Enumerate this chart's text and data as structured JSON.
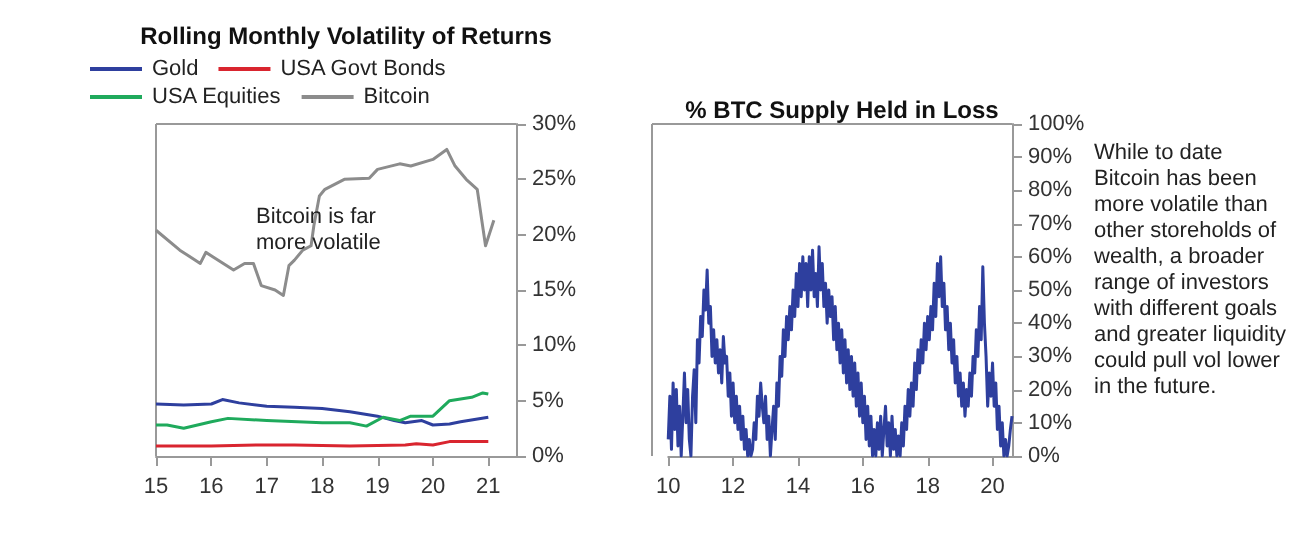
{
  "chart_data": [
    {
      "type": "line",
      "title": "Rolling Monthly Volatility of Returns",
      "legend": "top",
      "marker": "none",
      "grid": false,
      "xlim": [
        15,
        21.5
      ],
      "xticks": [
        15,
        16,
        17,
        18,
        19,
        20,
        21
      ],
      "ylim": [
        0,
        30
      ],
      "yticks": [
        {
          "value": 0,
          "label": "0%"
        },
        {
          "value": 5,
          "label": "5%"
        },
        {
          "value": 10,
          "label": "10%"
        },
        {
          "value": 15,
          "label": "15%"
        },
        {
          "value": 20,
          "label": "20%"
        },
        {
          "value": 25,
          "label": "25%"
        },
        {
          "value": 30,
          "label": "30%"
        }
      ],
      "annotations": [
        "Bitcoin is far more volatile"
      ],
      "series": [
        {
          "name": "Gold",
          "color": "#2e3f9e",
          "x": [
            15,
            15.5,
            16,
            16.2,
            16.5,
            17,
            17.5,
            18,
            18.5,
            19,
            19.3,
            19.5,
            19.8,
            20,
            20.3,
            20.5,
            21
          ],
          "values": [
            4.7,
            4.6,
            4.7,
            5.1,
            4.8,
            4.5,
            4.4,
            4.3,
            4.0,
            3.6,
            3.2,
            3.0,
            3.2,
            2.8,
            2.9,
            3.1,
            3.5
          ]
        },
        {
          "name": "USA Govt Bonds",
          "color": "#d9252f",
          "x": [
            15,
            16,
            16.9,
            17.5,
            18.5,
            19.5,
            19.7,
            20,
            20.3,
            21
          ],
          "values": [
            0.9,
            0.9,
            1.0,
            1.0,
            0.9,
            1.0,
            1.1,
            1.0,
            1.3,
            1.3
          ]
        },
        {
          "name": "USA Equities",
          "color": "#1faa5c",
          "x": [
            15,
            15.2,
            15.5,
            16,
            16.3,
            17,
            18,
            18.5,
            18.8,
            19.1,
            19.4,
            19.6,
            20,
            20.3,
            20.7,
            20.9,
            21
          ],
          "values": [
            2.8,
            2.8,
            2.5,
            3.1,
            3.4,
            3.2,
            3.0,
            3.0,
            2.7,
            3.5,
            3.2,
            3.6,
            3.6,
            5.0,
            5.3,
            5.7,
            5.6
          ]
        },
        {
          "name": "Bitcoin",
          "color": "#8c8c8c",
          "x": [
            15,
            15.43,
            15.8,
            15.9,
            16.4,
            16.6,
            16.76,
            16.9,
            17.15,
            17.3,
            17.4,
            17.5,
            17.65,
            17.8,
            17.85,
            17.95,
            18.05,
            18.4,
            18.85,
            19,
            19.4,
            19.6,
            20,
            20.25,
            20.4,
            20.6,
            20.8,
            20.95,
            21.1
          ],
          "values": [
            20.4,
            18.6,
            17.4,
            18.4,
            16.8,
            17.4,
            17.4,
            15.4,
            15,
            14.5,
            17.2,
            17.7,
            18.6,
            19,
            20.8,
            23.5,
            24.1,
            25,
            25.1,
            25.9,
            26.4,
            26.2,
            26.8,
            27.7,
            26.2,
            25,
            24.1,
            19,
            21.3
          ]
        }
      ]
    },
    {
      "type": "line",
      "title": "% BTC Supply Held in Loss",
      "marker": "none",
      "grid": false,
      "xlim": [
        10,
        20.6
      ],
      "xticks": [
        10,
        12,
        14,
        16,
        18,
        20
      ],
      "ylim": [
        0,
        100
      ],
      "yticks": [
        {
          "value": 0,
          "label": "0%"
        },
        {
          "value": 10,
          "label": "10%"
        },
        {
          "value": 20,
          "label": "20%"
        },
        {
          "value": 30,
          "label": "30%"
        },
        {
          "value": 40,
          "label": "40%"
        },
        {
          "value": 50,
          "label": "50%"
        },
        {
          "value": 60,
          "label": "60%"
        },
        {
          "value": 70,
          "label": "70%"
        },
        {
          "value": 80,
          "label": "80%"
        },
        {
          "value": 90,
          "label": "90%"
        },
        {
          "value": 100,
          "label": "100%"
        }
      ],
      "annotations": [
        "While to date Bitcoin has been more volatile than other storeholds of wealth, a broader range of investors with different goals and greater liquidity could pull vol lower in the future."
      ],
      "series": [
        {
          "color": "#2e3f9e",
          "x": [
            10,
            10.05,
            10.1,
            10.15,
            10.2,
            10.25,
            10.3,
            10.35,
            10.4,
            10.45,
            10.5,
            10.55,
            10.6,
            10.65,
            10.7,
            10.75,
            10.8,
            10.85,
            10.9,
            10.95,
            11,
            11.05,
            11.1,
            11.15,
            11.2,
            11.25,
            11.3,
            11.35,
            11.4,
            11.45,
            11.5,
            11.55,
            11.6,
            11.65,
            11.7,
            11.75,
            11.8,
            11.85,
            11.9,
            11.95,
            12,
            12.05,
            12.1,
            12.15,
            12.2,
            12.25,
            12.3,
            12.35,
            12.4,
            12.45,
            12.5,
            12.55,
            12.6,
            12.65,
            12.7,
            12.75,
            12.8,
            12.85,
            12.9,
            12.95,
            13,
            13.05,
            13.1,
            13.15,
            13.2,
            13.25,
            13.3,
            13.35,
            13.4,
            13.45,
            13.5,
            13.55,
            13.6,
            13.65,
            13.7,
            13.75,
            13.8,
            13.85,
            13.9,
            13.95,
            14,
            14.05,
            14.1,
            14.15,
            14.2,
            14.25,
            14.3,
            14.35,
            14.4,
            14.45,
            14.5,
            14.55,
            14.6,
            14.65,
            14.7,
            14.75,
            14.8,
            14.85,
            14.9,
            14.95,
            15,
            15.05,
            15.1,
            15.15,
            15.2,
            15.25,
            15.3,
            15.35,
            15.4,
            15.45,
            15.5,
            15.55,
            15.6,
            15.65,
            15.7,
            15.75,
            15.8,
            15.85,
            15.9,
            15.95,
            16,
            16.05,
            16.1,
            16.15,
            16.2,
            16.25,
            16.3,
            16.35,
            16.4,
            16.45,
            16.5,
            16.55,
            16.6,
            16.65,
            16.7,
            16.75,
            16.8,
            16.85,
            16.9,
            16.95,
            17,
            17.05,
            17.1,
            17.15,
            17.2,
            17.25,
            17.3,
            17.35,
            17.4,
            17.45,
            17.5,
            17.55,
            17.6,
            17.65,
            17.7,
            17.75,
            17.8,
            17.85,
            17.9,
            17.95,
            18,
            18.05,
            18.1,
            18.15,
            18.2,
            18.25,
            18.3,
            18.35,
            18.4,
            18.45,
            18.5,
            18.55,
            18.6,
            18.65,
            18.7,
            18.75,
            18.8,
            18.85,
            18.9,
            18.95,
            19,
            19.05,
            19.1,
            19.15,
            19.2,
            19.25,
            19.3,
            19.35,
            19.4,
            19.45,
            19.5,
            19.55,
            19.6,
            19.65,
            19.7,
            19.75,
            19.8,
            19.85,
            19.9,
            19.95,
            20,
            20.05,
            20.1,
            20.15,
            20.2,
            20.25,
            20.3,
            20.35,
            20.4,
            20.45,
            20.5,
            20.55,
            20.6
          ],
          "values": [
            5,
            18,
            2,
            22,
            8,
            20,
            3,
            15,
            0,
            12,
            25,
            10,
            20,
            5,
            0,
            18,
            26,
            10,
            35,
            28,
            42,
            36,
            50,
            44,
            56,
            40,
            45,
            30,
            38,
            28,
            35,
            25,
            32,
            22,
            36,
            28,
            30,
            18,
            25,
            12,
            22,
            10,
            18,
            8,
            15,
            5,
            12,
            2,
            8,
            0,
            5,
            0,
            2,
            10,
            5,
            18,
            12,
            22,
            15,
            10,
            18,
            5,
            12,
            0,
            8,
            15,
            5,
            22,
            15,
            30,
            24,
            38,
            30,
            42,
            35,
            45,
            38,
            50,
            42,
            55,
            45,
            58,
            48,
            60,
            50,
            58,
            45,
            60,
            50,
            62,
            48,
            55,
            45,
            63,
            50,
            58,
            45,
            52,
            40,
            50,
            42,
            48,
            35,
            45,
            32,
            40,
            28,
            38,
            25,
            35,
            22,
            32,
            20,
            30,
            18,
            28,
            15,
            25,
            12,
            22,
            10,
            18,
            5,
            15,
            3,
            12,
            0,
            8,
            0,
            10,
            2,
            12,
            0,
            8,
            15,
            3,
            10,
            0,
            12,
            2,
            8,
            0,
            6,
            0,
            10,
            3,
            15,
            8,
            20,
            12,
            22,
            15,
            28,
            20,
            32,
            25,
            35,
            28,
            40,
            32,
            42,
            35,
            45,
            38,
            52,
            42,
            58,
            48,
            60,
            45,
            52,
            38,
            45,
            32,
            40,
            28,
            35,
            22,
            30,
            18,
            25,
            15,
            22,
            12,
            20,
            15,
            25,
            18,
            30,
            25,
            38,
            30,
            45,
            35,
            57,
            40,
            30,
            15,
            25,
            18,
            28,
            15,
            22,
            8,
            15,
            3,
            10,
            0,
            5,
            0,
            3,
            8,
            12
          ]
        }
      ]
    }
  ]
}
